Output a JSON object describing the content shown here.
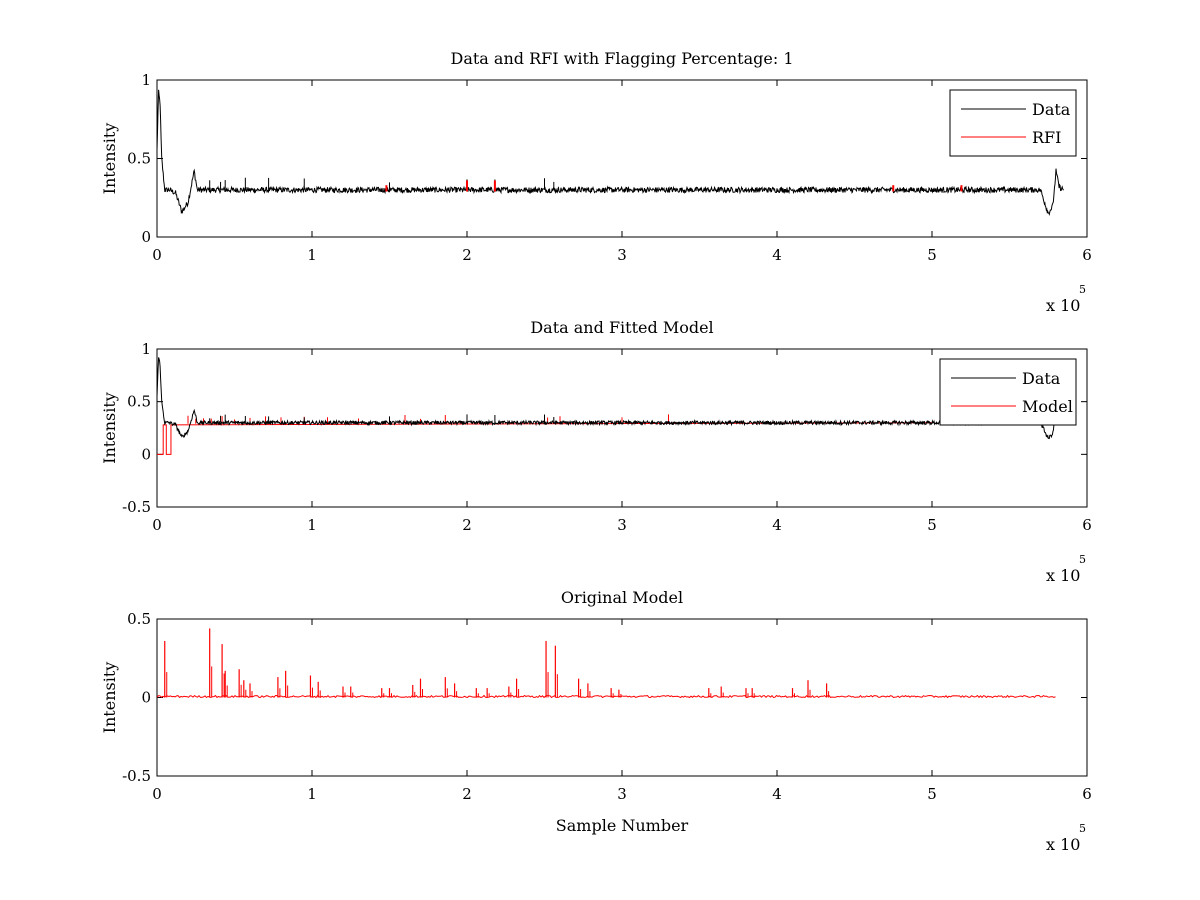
{
  "chart_data": [
    {
      "type": "line",
      "title": "Data and RFI with Flagging Percentage: 1",
      "xlabel": "",
      "ylabel": "Intensity",
      "xlim": [
        0,
        600000
      ],
      "ylim": [
        0,
        1
      ],
      "x_ticks": [
        "0",
        "1",
        "2",
        "3",
        "4",
        "5",
        "6"
      ],
      "y_ticks": [
        "0",
        "0.5",
        "1"
      ],
      "x_multiplier": "x 10",
      "x_exponent": "5",
      "legend": {
        "position": "top-right",
        "entries": [
          "Data",
          "RFI"
        ]
      },
      "series": [
        {
          "name": "Data",
          "color": "#000000",
          "x": [
            0,
            1000,
            2000,
            3000,
            5000,
            8000,
            12000,
            16000,
            20000,
            24000,
            26000,
            30000,
            40000,
            60000,
            100000,
            200000,
            300000,
            400000,
            500000,
            560000,
            570000,
            575000,
            578000,
            580000,
            582000,
            585000
          ],
          "y": [
            0.55,
            0.92,
            0.85,
            0.5,
            0.3,
            0.3,
            0.28,
            0.16,
            0.22,
            0.42,
            0.3,
            0.3,
            0.3,
            0.3,
            0.3,
            0.3,
            0.3,
            0.3,
            0.3,
            0.3,
            0.3,
            0.15,
            0.2,
            0.42,
            0.32,
            0.3
          ]
        },
        {
          "name": "RFI",
          "color": "#ff0000",
          "x": [
            148000,
            200000,
            218000,
            475000,
            519000
          ],
          "y": [
            0.33,
            0.36,
            0.36,
            0.33,
            0.33
          ]
        }
      ]
    },
    {
      "type": "line",
      "title": "Data and Fitted Model",
      "xlabel": "",
      "ylabel": "Intensity",
      "xlim": [
        0,
        600000
      ],
      "ylim": [
        -0.5,
        1
      ],
      "x_ticks": [
        "0",
        "1",
        "2",
        "3",
        "4",
        "5",
        "6"
      ],
      "y_ticks": [
        "-0.5",
        "0",
        "0.5",
        "1"
      ],
      "x_multiplier": "x 10",
      "x_exponent": "5",
      "legend": {
        "position": "top-right",
        "entries": [
          "Data",
          "Model"
        ]
      },
      "series": [
        {
          "name": "Data",
          "color": "#000000",
          "x": [
            0,
            1000,
            2000,
            3000,
            5000,
            8000,
            12000,
            16000,
            20000,
            24000,
            26000,
            30000,
            40000,
            60000,
            100000,
            200000,
            300000,
            400000,
            500000,
            560000,
            570000,
            575000,
            578000,
            580000,
            582000,
            585000
          ],
          "y": [
            0.55,
            0.92,
            0.85,
            0.5,
            0.3,
            0.3,
            0.28,
            0.16,
            0.22,
            0.42,
            0.3,
            0.3,
            0.3,
            0.3,
            0.3,
            0.3,
            0.3,
            0.3,
            0.3,
            0.3,
            0.3,
            0.15,
            0.2,
            0.42,
            0.32,
            0.3
          ]
        },
        {
          "name": "Model",
          "color": "#ff0000",
          "x": [
            0,
            4000,
            4000,
            6000,
            6000,
            9000,
            9000,
            500000
          ],
          "y": [
            0,
            0,
            0.28,
            0.28,
            0,
            0,
            0.28,
            0.3
          ]
        }
      ]
    },
    {
      "type": "line",
      "title": "Original Model",
      "xlabel": "Sample Number",
      "ylabel": "Intensity",
      "xlim": [
        0,
        600000
      ],
      "ylim": [
        -0.5,
        0.5
      ],
      "x_ticks": [
        "0",
        "1",
        "2",
        "3",
        "4",
        "5",
        "6"
      ],
      "y_ticks": [
        "-0.5",
        "0",
        "0.5"
      ],
      "x_multiplier": "x 10",
      "x_exponent": "5",
      "series": [
        {
          "name": "",
          "color": "#ff0000",
          "x": [
            5000,
            34000,
            42000,
            44000,
            53000,
            56000,
            60000,
            78000,
            83000,
            99000,
            104000,
            120000,
            125000,
            145000,
            150000,
            165000,
            170000,
            186000,
            192000,
            206000,
            213000,
            227000,
            232000,
            251000,
            257000,
            272000,
            278000,
            293000,
            298000,
            356000,
            364000,
            380000,
            384000,
            410000,
            420000,
            432000
          ],
          "y": [
            0.36,
            0.44,
            0.34,
            0.17,
            0.18,
            0.11,
            0.09,
            0.13,
            0.17,
            0.14,
            0.1,
            0.07,
            0.07,
            0.06,
            0.06,
            0.08,
            0.12,
            0.13,
            0.09,
            0.06,
            0.06,
            0.07,
            0.12,
            0.36,
            0.33,
            0.12,
            0.09,
            0.06,
            0.05,
            0.06,
            0.07,
            0.06,
            0.06,
            0.06,
            0.11,
            0.09
          ]
        }
      ]
    }
  ]
}
